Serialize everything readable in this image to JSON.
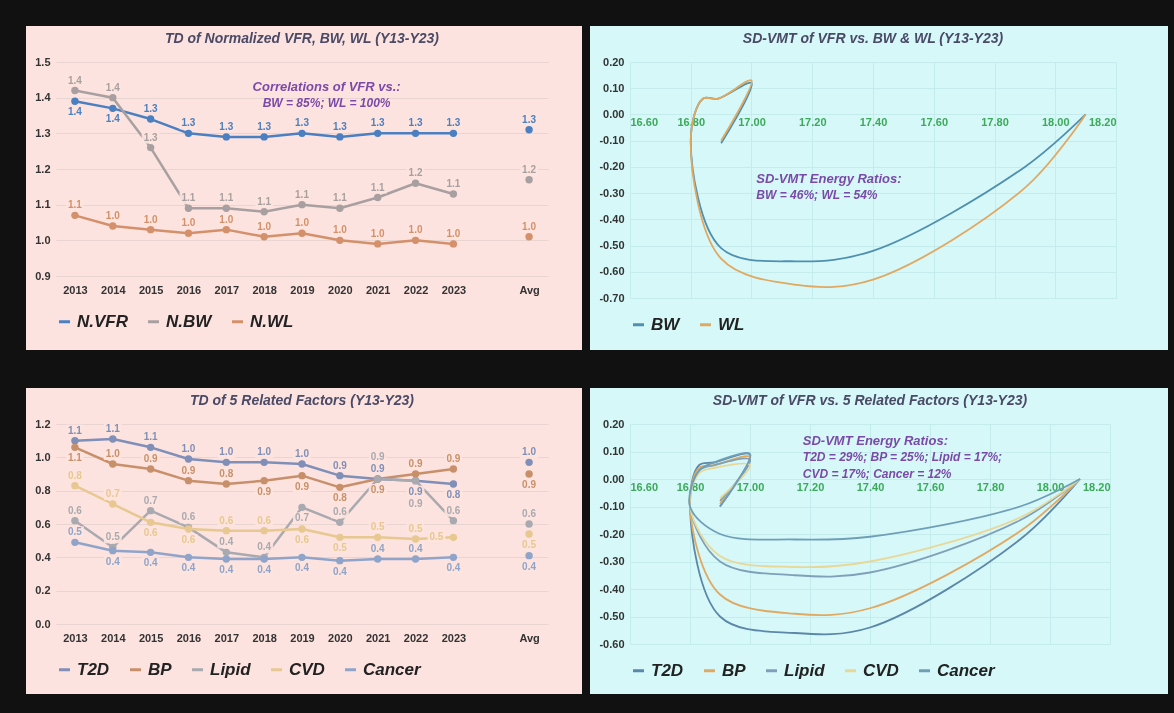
{
  "chart_data": [
    {
      "type": "line",
      "title": "TD of Normalized VFR, BW, WL  (Y13-Y23)",
      "categories": [
        "2013",
        "2014",
        "2015",
        "2016",
        "2017",
        "2018",
        "2019",
        "2020",
        "2021",
        "2022",
        "2023",
        null,
        "Avg"
      ],
      "ylim": [
        0.9,
        1.5
      ],
      "yticks": [
        {
          "value": 0.9,
          "label": "0.9"
        },
        {
          "value": 1.0,
          "label": "1.0"
        },
        {
          "value": 1.1,
          "label": "1.1"
        },
        {
          "value": 1.2,
          "label": "1.2"
        },
        {
          "value": 1.3,
          "label": "1.3"
        },
        {
          "value": 1.4,
          "label": "1.4"
        },
        {
          "value": 1.5,
          "label": "1.5"
        }
      ],
      "grid": "y",
      "legend": "bottom",
      "marker": "circle",
      "annotations": [
        "Correlations of VFR vs.:",
        "BW = 85%;  WL = 100%"
      ],
      "series": [
        {
          "name": "N.VFR",
          "color": "#4a7fc1",
          "values": [
            1.39,
            1.37,
            1.34,
            1.3,
            1.29,
            1.29,
            1.3,
            1.29,
            1.3,
            1.3,
            1.3,
            null,
            1.31
          ],
          "value_labels": [
            "1.4",
            "1.4",
            "1.3",
            "1.3",
            "1.3",
            "1.3",
            "1.3",
            "1.3",
            "1.3",
            "1.3",
            "1.3",
            null,
            "1.3"
          ]
        },
        {
          "name": "N.BW",
          "color": "#a8a0a0",
          "values": [
            1.42,
            1.4,
            1.26,
            1.09,
            1.09,
            1.08,
            1.1,
            1.09,
            1.12,
            1.16,
            1.13,
            null,
            1.17
          ],
          "value_labels": [
            "1.4",
            "1.4",
            "1.3",
            "1.1",
            "1.1",
            "1.1",
            "1.1",
            "1.1",
            "1.1",
            "1.2",
            "1.1",
            null,
            "1.2"
          ]
        },
        {
          "name": "N.WL",
          "color": "#d4906a",
          "values": [
            1.07,
            1.04,
            1.03,
            1.02,
            1.03,
            1.01,
            1.02,
            1.0,
            0.99,
            1.0,
            0.99,
            null,
            1.01
          ],
          "value_labels": [
            "1.1",
            "1.0",
            "1.0",
            "1.0",
            "1.0",
            "1.0",
            "1.0",
            "1.0",
            "1.0",
            "1.0",
            "1.0",
            null,
            "1.0"
          ]
        }
      ]
    },
    {
      "type": "line",
      "title": "SD-VMT of VFR vs. BW & WL  (Y13-Y23)",
      "xlim": [
        16.6,
        18.2
      ],
      "xticks": [
        {
          "value": 16.6,
          "label": "16.60"
        },
        {
          "value": 16.8,
          "label": "16.80"
        },
        {
          "value": 17.0,
          "label": "17.00"
        },
        {
          "value": 17.2,
          "label": "17.20"
        },
        {
          "value": 17.4,
          "label": "17.40"
        },
        {
          "value": 17.6,
          "label": "17.60"
        },
        {
          "value": 17.8,
          "label": "17.80"
        },
        {
          "value": 18.0,
          "label": "18.00"
        },
        {
          "value": 18.2,
          "label": "18.20"
        }
      ],
      "ylim": [
        -0.7,
        0.2
      ],
      "yticks": [
        {
          "value": 0.2,
          "label": "0.20"
        },
        {
          "value": 0.1,
          "label": "0.10"
        },
        {
          "value": 0,
          "label": "0.00"
        },
        {
          "value": -0.1,
          "label": "-0.10"
        },
        {
          "value": -0.2,
          "label": "-0.20"
        },
        {
          "value": -0.3,
          "label": "-0.30"
        },
        {
          "value": -0.4,
          "label": "-0.40"
        },
        {
          "value": -0.5,
          "label": "-0.50"
        },
        {
          "value": -0.6,
          "label": "-0.60"
        },
        {
          "value": -0.7,
          "label": "-0.70"
        }
      ],
      "grid": true,
      "legend": "bottom",
      "annotations": [
        "SD-VMT Energy Ratios:",
        "BW = 46%;  WL = 54%"
      ],
      "series": [
        {
          "name": "BW",
          "color": "#4f8fb0",
          "x": [
            18.1,
            17.9,
            17.4,
            17.15,
            16.9,
            16.8,
            16.84,
            16.89,
            17.0,
            16.9
          ],
          "values": [
            0.0,
            -0.2,
            -0.52,
            -0.56,
            -0.51,
            -0.1,
            0.06,
            0.06,
            0.12,
            -0.11
          ]
        },
        {
          "name": "WL",
          "color": "#e0a860",
          "x": [
            18.1,
            17.9,
            17.4,
            17.15,
            16.9,
            16.8,
            16.84,
            16.89,
            17.0,
            16.9
          ],
          "values": [
            0.0,
            -0.28,
            -0.63,
            -0.65,
            -0.55,
            -0.1,
            0.06,
            0.06,
            0.13,
            -0.1
          ]
        }
      ]
    },
    {
      "type": "line",
      "title": "TD of 5 Related Factors  (Y13-Y23)",
      "categories": [
        "2013",
        "2014",
        "2015",
        "2016",
        "2017",
        "2018",
        "2019",
        "2020",
        "2021",
        "2022",
        "2023",
        null,
        "Avg"
      ],
      "ylim": [
        0,
        1.2
      ],
      "yticks": [
        {
          "value": 0,
          "label": "0.0"
        },
        {
          "value": 0.2,
          "label": "0.2"
        },
        {
          "value": 0.4,
          "label": "0.4"
        },
        {
          "value": 0.6,
          "label": "0.6"
        },
        {
          "value": 0.8,
          "label": "0.8"
        },
        {
          "value": 1.0,
          "label": "1.0"
        },
        {
          "value": 1.2,
          "label": "1.2"
        }
      ],
      "grid": "y",
      "legend": "bottom",
      "marker": "circle",
      "series": [
        {
          "name": "T2D",
          "color": "#7f8fb8",
          "values": [
            1.1,
            1.11,
            1.06,
            0.99,
            0.97,
            0.97,
            0.96,
            0.89,
            0.87,
            0.86,
            0.84,
            null,
            0.97
          ],
          "value_labels": [
            "1.1",
            "1.1",
            "1.1",
            "1.0",
            "1.0",
            "1.0",
            "1.0",
            "0.9",
            "0.9",
            "0.9",
            "0.8",
            null,
            "1.0"
          ]
        },
        {
          "name": "BP",
          "color": "#c8906a",
          "values": [
            1.06,
            0.96,
            0.93,
            0.86,
            0.84,
            0.86,
            0.89,
            0.82,
            0.87,
            0.9,
            0.93,
            null,
            0.9
          ],
          "value_labels": [
            "1.1",
            "1.0",
            "0.9",
            "0.9",
            "0.8",
            "0.9",
            "0.9",
            "0.8",
            "0.9",
            "0.9",
            "0.9",
            null,
            "0.9"
          ]
        },
        {
          "name": "Lipid",
          "color": "#a9a9b0",
          "values": [
            0.62,
            0.46,
            0.68,
            0.58,
            0.43,
            0.4,
            0.7,
            0.61,
            0.87,
            0.86,
            0.62,
            null,
            0.6
          ],
          "value_labels": [
            "0.6",
            "0.5",
            "0.7",
            "0.6",
            "0.4",
            "0.4",
            "0.7",
            "0.6",
            "0.9",
            "0.9",
            "0.6",
            null,
            "0.6"
          ]
        },
        {
          "name": "CVD",
          "color": "#e6c890",
          "values": [
            0.83,
            0.72,
            0.61,
            0.57,
            0.56,
            0.56,
            0.57,
            0.52,
            0.52,
            0.51,
            0.52,
            null,
            0.54
          ],
          "value_labels": [
            "0.8",
            "0.7",
            "0.6",
            "0.6",
            "0.6",
            "0.6",
            "0.6",
            "0.5",
            "0.5",
            "0.5",
            "0.5",
            null,
            "0.5"
          ]
        },
        {
          "name": "Cancer",
          "color": "#8fa4c8",
          "values": [
            0.49,
            0.44,
            0.43,
            0.4,
            0.39,
            0.39,
            0.4,
            0.38,
            0.39,
            0.39,
            0.4,
            null,
            0.41
          ],
          "value_labels": [
            "0.5",
            "0.4",
            "0.4",
            "0.4",
            "0.4",
            "0.4",
            "0.4",
            "0.4",
            "0.4",
            "0.4",
            "0.4",
            null,
            "0.4"
          ]
        }
      ]
    },
    {
      "type": "line",
      "title": "SD-VMT of VFR vs. 5 Related Factors  (Y13-Y23)",
      "xlim": [
        16.6,
        18.2
      ],
      "xticks": [
        {
          "value": 16.6,
          "label": "16.60"
        },
        {
          "value": 16.8,
          "label": "16.80"
        },
        {
          "value": 17.0,
          "label": "17.00"
        },
        {
          "value": 17.2,
          "label": "17.20"
        },
        {
          "value": 17.4,
          "label": "17.40"
        },
        {
          "value": 17.6,
          "label": "17.60"
        },
        {
          "value": 17.8,
          "label": "17.80"
        },
        {
          "value": 18.0,
          "label": "18.00"
        },
        {
          "value": 18.2,
          "label": "18.20"
        }
      ],
      "ylim": [
        -0.6,
        0.2
      ],
      "yticks": [
        {
          "value": 0.2,
          "label": "0.20"
        },
        {
          "value": 0.1,
          "label": "0.10"
        },
        {
          "value": 0,
          "label": "0.00"
        },
        {
          "value": -0.1,
          "label": "-0.10"
        },
        {
          "value": -0.2,
          "label": "-0.20"
        },
        {
          "value": -0.3,
          "label": "-0.30"
        },
        {
          "value": -0.4,
          "label": "-0.40"
        },
        {
          "value": -0.5,
          "label": "-0.50"
        },
        {
          "value": -0.6,
          "label": "-0.60"
        }
      ],
      "grid": true,
      "legend": "bottom",
      "annotations": [
        "SD-VMT Energy Ratios:",
        "T2D = 29%;  BP = 25%;  Lipid = 17%;",
        "CVD = 17%;  Cancer = 12%"
      ],
      "series": [
        {
          "name": "T2D",
          "color": "#5b87a8",
          "x": [
            18.1,
            17.9,
            17.4,
            17.15,
            16.9,
            16.8,
            16.83,
            16.88,
            17.0,
            16.9
          ],
          "values": [
            0.0,
            -0.22,
            -0.54,
            -0.56,
            -0.5,
            -0.1,
            0.05,
            0.06,
            0.09,
            -0.1
          ]
        },
        {
          "name": "BP",
          "color": "#e0a860",
          "x": [
            18.1,
            17.9,
            17.4,
            17.15,
            16.9,
            16.8,
            16.83,
            16.88,
            17.0,
            16.9
          ],
          "values": [
            0.0,
            -0.19,
            -0.47,
            -0.49,
            -0.42,
            -0.1,
            0.04,
            0.05,
            0.08,
            -0.09
          ]
        },
        {
          "name": "Lipid",
          "color": "#7fa0b8",
          "x": [
            18.1,
            17.9,
            17.4,
            17.15,
            16.9,
            16.8,
            16.83,
            16.88,
            17.0,
            16.9
          ],
          "values": [
            0.0,
            -0.15,
            -0.34,
            -0.35,
            -0.3,
            -0.1,
            0.03,
            0.05,
            0.07,
            -0.08
          ]
        },
        {
          "name": "CVD",
          "color": "#e8d898",
          "x": [
            18.1,
            17.9,
            17.4,
            17.15,
            16.9,
            16.8,
            16.83,
            16.88,
            17.0,
            16.9
          ],
          "values": [
            0.0,
            -0.14,
            -0.3,
            -0.32,
            -0.28,
            -0.1,
            0.02,
            0.04,
            0.05,
            -0.07
          ]
        },
        {
          "name": "Cancer",
          "color": "#6f9fb8",
          "x": [
            18.1,
            17.9,
            17.4,
            17.15,
            16.9,
            16.8,
            16.83,
            16.88,
            17.0,
            16.9
          ],
          "values": [
            0.0,
            -0.1,
            -0.21,
            -0.22,
            -0.2,
            -0.1,
            0.03,
            0.06,
            0.09,
            -0.1
          ]
        }
      ]
    }
  ]
}
